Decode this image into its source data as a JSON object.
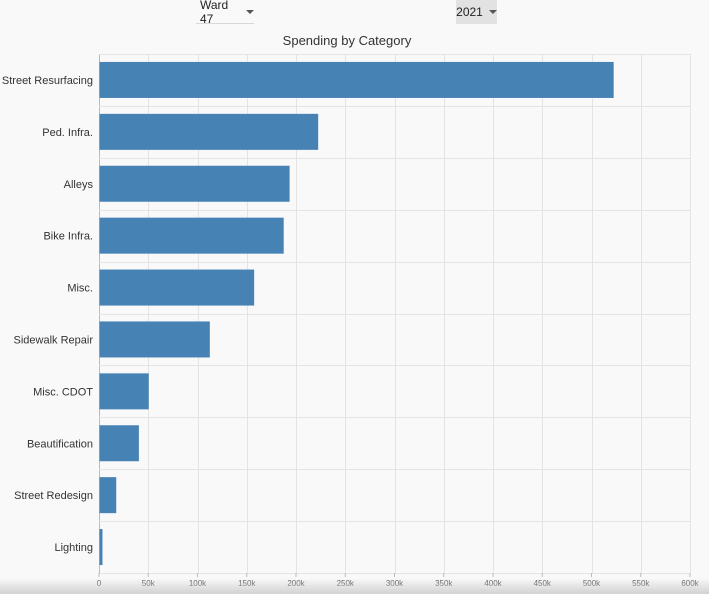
{
  "controls": {
    "ward_value": "Ward 47",
    "year_value": "2021"
  },
  "chart_data": {
    "type": "bar",
    "orientation": "horizontal",
    "title": "Spending by Category",
    "xlabel": "",
    "ylabel": "",
    "xlim": [
      0,
      600000
    ],
    "x_ticks": [
      0,
      50000,
      100000,
      150000,
      200000,
      250000,
      300000,
      350000,
      400000,
      450000,
      500000,
      550000,
      600000
    ],
    "x_tick_labels": [
      "0",
      "50k",
      "100k",
      "150k",
      "200k",
      "250k",
      "300k",
      "350k",
      "400k",
      "450k",
      "500k",
      "550k",
      "600k"
    ],
    "grid": true,
    "bar_color": "#4682b4",
    "categories": [
      "Street Resurfacing",
      "Ped. Infra.",
      "Alleys",
      "Bike Infra.",
      "Misc.",
      "Sidewalk Repair",
      "Misc. CDOT",
      "Beautification",
      "Street Redesign",
      "Lighting"
    ],
    "values": [
      522000,
      222000,
      193000,
      187000,
      157000,
      112000,
      50000,
      40000,
      17000,
      3000
    ]
  }
}
